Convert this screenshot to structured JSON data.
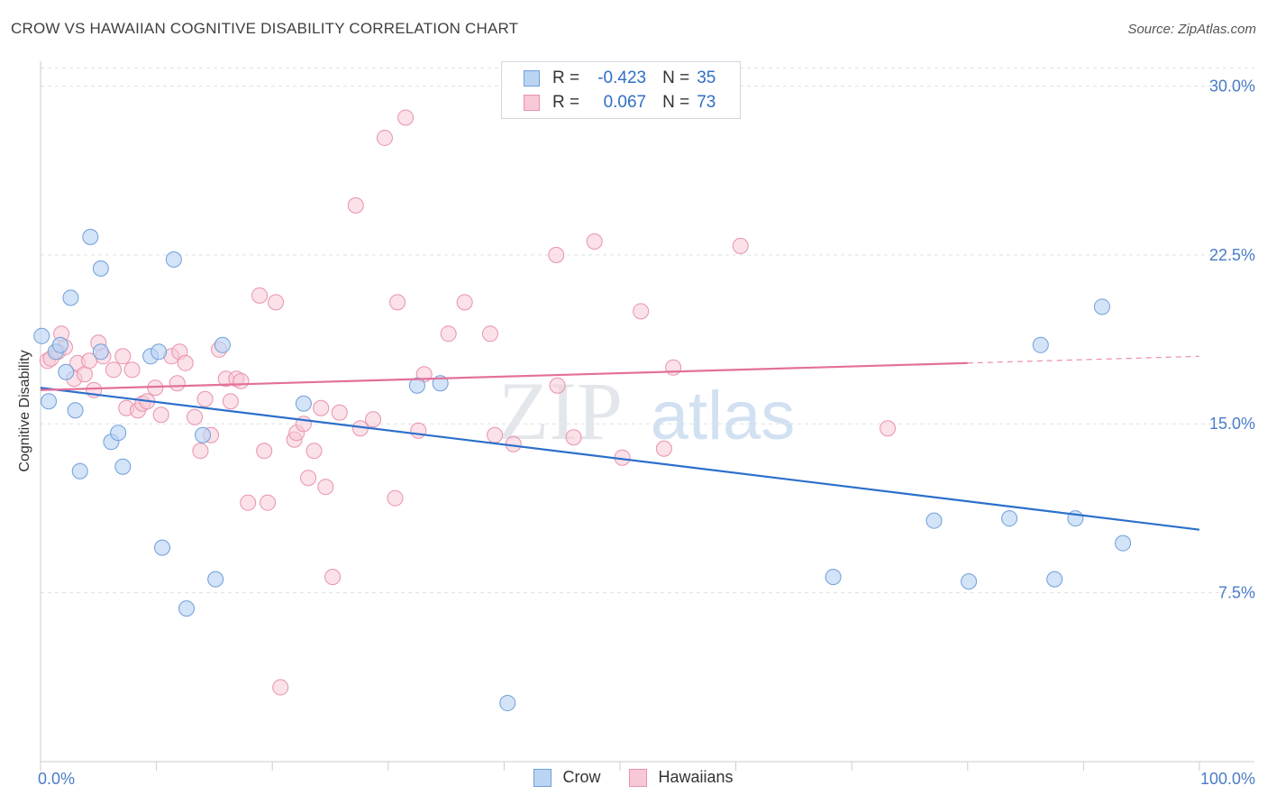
{
  "title": "CROW VS HAWAIIAN COGNITIVE DISABILITY CORRELATION CHART",
  "source": "Source: ZipAtlas.com",
  "watermark": {
    "zip": "ZIP",
    "atlas": "atlas"
  },
  "legend": {
    "r_label": "R =",
    "n_label": "N =",
    "crow": {
      "r": "-0.423",
      "n": "35"
    },
    "hawaiians": {
      "r": "0.067",
      "n": "73"
    }
  },
  "colors": {
    "crow_fill": "#bcd4f4",
    "crow_stroke": "#6f9fd8",
    "crow_line": "#2b6fcc",
    "haw_fill": "#f8c8d6",
    "haw_stroke": "#e892ad",
    "haw_line": "#e3709a",
    "tick_label": "#4a7cc7"
  },
  "chart_data": {
    "type": "scatter",
    "title": "CROW VS HAWAIIAN COGNITIVE DISABILITY CORRELATION CHART",
    "xlabel": "",
    "ylabel": "Cognitive Disability",
    "xlim": [
      0,
      100
    ],
    "ylim": [
      0,
      30.9
    ],
    "x_tick_labels": [
      "0.0%",
      "100.0%"
    ],
    "y_ticks": [
      7.5,
      15.0,
      22.5,
      30.0
    ],
    "y_tick_labels": [
      "7.5%",
      "15.0%",
      "22.5%",
      "30.0%"
    ],
    "legend_entries": [
      "Crow",
      "Hawaiians"
    ],
    "series": [
      {
        "name": "Crow",
        "r": -0.423,
        "n": 35,
        "trend": {
          "x": [
            0,
            100
          ],
          "y": [
            16.6,
            10.3
          ]
        },
        "points": [
          [
            0.1,
            18.9
          ],
          [
            1.3,
            18.2
          ],
          [
            1.7,
            18.5
          ],
          [
            0.7,
            16.0
          ],
          [
            2.2,
            17.3
          ],
          [
            2.6,
            20.6
          ],
          [
            3.0,
            15.6
          ],
          [
            3.4,
            12.9
          ],
          [
            4.3,
            23.3
          ],
          [
            5.2,
            21.9
          ],
          [
            5.2,
            18.2
          ],
          [
            6.1,
            14.2
          ],
          [
            6.7,
            14.6
          ],
          [
            7.1,
            13.1
          ],
          [
            9.5,
            18.0
          ],
          [
            10.2,
            18.2
          ],
          [
            10.5,
            9.5
          ],
          [
            11.5,
            22.3
          ],
          [
            12.6,
            6.8
          ],
          [
            14.0,
            14.5
          ],
          [
            15.1,
            8.1
          ],
          [
            15.7,
            18.5
          ],
          [
            22.7,
            15.9
          ],
          [
            32.5,
            16.7
          ],
          [
            34.5,
            16.8
          ],
          [
            40.3,
            2.6
          ],
          [
            68.4,
            8.2
          ],
          [
            77.1,
            10.7
          ],
          [
            80.1,
            8.0
          ],
          [
            83.6,
            10.8
          ],
          [
            86.3,
            18.5
          ],
          [
            87.5,
            8.1
          ],
          [
            89.3,
            10.8
          ],
          [
            91.6,
            20.2
          ],
          [
            93.4,
            9.7
          ]
        ]
      },
      {
        "name": "Hawaiians",
        "r": 0.067,
        "n": 73,
        "trend": {
          "x": [
            0,
            80
          ],
          "y": [
            16.5,
            17.7
          ],
          "dashed_to": {
            "x": 100,
            "y": 18.0
          }
        },
        "points": [
          [
            0.6,
            17.8
          ],
          [
            0.9,
            17.9
          ],
          [
            1.5,
            18.2
          ],
          [
            1.8,
            19.0
          ],
          [
            2.1,
            18.4
          ],
          [
            2.9,
            17.0
          ],
          [
            3.2,
            17.7
          ],
          [
            3.8,
            17.2
          ],
          [
            4.2,
            17.8
          ],
          [
            4.6,
            16.5
          ],
          [
            5.0,
            18.6
          ],
          [
            5.4,
            18.0
          ],
          [
            6.3,
            17.4
          ],
          [
            7.1,
            18.0
          ],
          [
            7.4,
            15.7
          ],
          [
            7.9,
            17.4
          ],
          [
            8.4,
            15.6
          ],
          [
            8.8,
            15.9
          ],
          [
            9.2,
            16.0
          ],
          [
            9.9,
            16.6
          ],
          [
            10.4,
            15.4
          ],
          [
            11.3,
            18.0
          ],
          [
            11.8,
            16.8
          ],
          [
            12.0,
            18.2
          ],
          [
            12.5,
            17.7
          ],
          [
            13.3,
            15.3
          ],
          [
            13.8,
            13.8
          ],
          [
            14.2,
            16.1
          ],
          [
            14.7,
            14.5
          ],
          [
            15.4,
            18.3
          ],
          [
            16.0,
            17.0
          ],
          [
            16.4,
            16.0
          ],
          [
            16.9,
            17.0
          ],
          [
            17.3,
            16.9
          ],
          [
            17.9,
            11.5
          ],
          [
            18.9,
            20.7
          ],
          [
            19.3,
            13.8
          ],
          [
            19.6,
            11.5
          ],
          [
            20.3,
            20.4
          ],
          [
            20.7,
            3.3
          ],
          [
            21.9,
            14.3
          ],
          [
            22.1,
            14.6
          ],
          [
            22.7,
            15.0
          ],
          [
            23.1,
            12.6
          ],
          [
            23.6,
            13.8
          ],
          [
            24.2,
            15.7
          ],
          [
            24.6,
            12.2
          ],
          [
            25.2,
            8.2
          ],
          [
            25.8,
            15.5
          ],
          [
            27.2,
            24.7
          ],
          [
            27.6,
            14.8
          ],
          [
            28.7,
            15.2
          ],
          [
            29.7,
            27.7
          ],
          [
            30.6,
            11.7
          ],
          [
            30.8,
            20.4
          ],
          [
            31.5,
            28.6
          ],
          [
            32.6,
            14.7
          ],
          [
            33.1,
            17.2
          ],
          [
            35.2,
            19.0
          ],
          [
            36.6,
            20.4
          ],
          [
            38.8,
            19.0
          ],
          [
            39.2,
            14.5
          ],
          [
            40.8,
            14.1
          ],
          [
            44.5,
            22.5
          ],
          [
            44.6,
            16.7
          ],
          [
            46.0,
            14.4
          ],
          [
            47.8,
            23.1
          ],
          [
            50.2,
            13.5
          ],
          [
            51.8,
            20.0
          ],
          [
            53.8,
            13.9
          ],
          [
            54.6,
            17.5
          ],
          [
            60.4,
            22.9
          ],
          [
            73.1,
            14.8
          ]
        ]
      }
    ]
  }
}
